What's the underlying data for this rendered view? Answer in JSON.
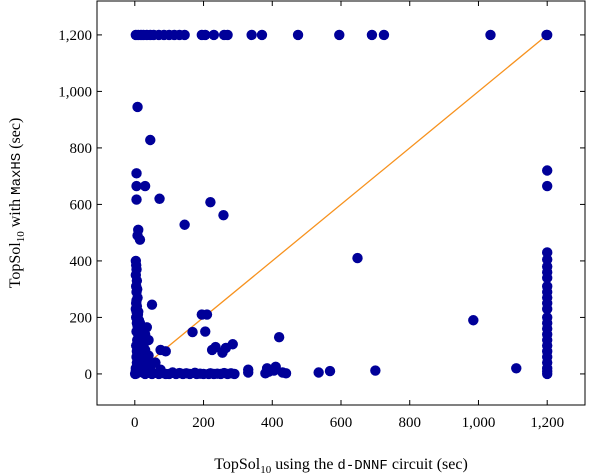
{
  "chart_data": {
    "type": "scatter",
    "xlabel": {
      "pre": "TopSol",
      "sub": "10",
      "mid": " using the ",
      "code": "d-DNNF",
      "post": " circuit (sec)"
    },
    "ylabel": {
      "pre": "TopSol",
      "sub": "10",
      "mid": " with ",
      "code": "MaxHS",
      "post": " (sec)"
    },
    "xlim": [
      -110,
      1310
    ],
    "ylim": [
      -110,
      1320
    ],
    "xticks": [
      0,
      200,
      400,
      600,
      800,
      1000,
      1200
    ],
    "xtick_labels": [
      "0",
      "200",
      "400",
      "600",
      "800",
      "1,000",
      "1,200"
    ],
    "yticks": [
      0,
      200,
      400,
      600,
      800,
      1000,
      1200
    ],
    "ytick_labels": [
      "0",
      "200",
      "400",
      "600",
      "800",
      "1,000",
      "1,200"
    ],
    "grid": false,
    "diagonal": {
      "from": [
        0,
        0
      ],
      "to": [
        1200,
        1200
      ],
      "color": "#f7921e"
    },
    "marker_color": "#000099",
    "points": [
      [
        3,
        1200
      ],
      [
        10,
        1200
      ],
      [
        18,
        1200
      ],
      [
        25,
        1200
      ],
      [
        35,
        1200
      ],
      [
        45,
        1200
      ],
      [
        55,
        1200
      ],
      [
        70,
        1200
      ],
      [
        85,
        1200
      ],
      [
        100,
        1200
      ],
      [
        115,
        1200
      ],
      [
        130,
        1200
      ],
      [
        145,
        1200
      ],
      [
        195,
        1200
      ],
      [
        205,
        1200
      ],
      [
        230,
        1200
      ],
      [
        260,
        1200
      ],
      [
        270,
        1200
      ],
      [
        340,
        1200
      ],
      [
        370,
        1200
      ],
      [
        475,
        1200
      ],
      [
        595,
        1200
      ],
      [
        690,
        1200
      ],
      [
        725,
        1200
      ],
      [
        1035,
        1200
      ],
      [
        1200,
        1200
      ],
      [
        1198,
        1200
      ],
      [
        8,
        945
      ],
      [
        45,
        828
      ],
      [
        5,
        710
      ],
      [
        5,
        665
      ],
      [
        30,
        665
      ],
      [
        72,
        620
      ],
      [
        5,
        617
      ],
      [
        220,
        608
      ],
      [
        258,
        562
      ],
      [
        145,
        528
      ],
      [
        10,
        510
      ],
      [
        8,
        490
      ],
      [
        15,
        475
      ],
      [
        1200,
        720
      ],
      [
        1200,
        665
      ],
      [
        1200,
        430
      ],
      [
        1200,
        405
      ],
      [
        1200,
        380
      ],
      [
        1200,
        360
      ],
      [
        1200,
        340
      ],
      [
        1200,
        310
      ],
      [
        1200,
        290
      ],
      [
        1200,
        270
      ],
      [
        1200,
        250
      ],
      [
        1200,
        230
      ],
      [
        1200,
        200
      ],
      [
        1200,
        180
      ],
      [
        1200,
        160
      ],
      [
        1200,
        140
      ],
      [
        1200,
        120
      ],
      [
        1200,
        100
      ],
      [
        1200,
        80
      ],
      [
        1200,
        60
      ],
      [
        1200,
        40
      ],
      [
        1200,
        20
      ],
      [
        1200,
        10
      ],
      [
        1200,
        0
      ],
      [
        648,
        410
      ],
      [
        985,
        190
      ],
      [
        1110,
        20
      ],
      [
        700,
        12
      ],
      [
        568,
        10
      ],
      [
        535,
        5
      ],
      [
        420,
        130
      ],
      [
        285,
        105
      ],
      [
        265,
        92
      ],
      [
        235,
        95
      ],
      [
        225,
        85
      ],
      [
        255,
        75
      ],
      [
        205,
        150
      ],
      [
        168,
        148
      ],
      [
        210,
        210
      ],
      [
        195,
        210
      ],
      [
        75,
        85
      ],
      [
        90,
        80
      ],
      [
        50,
        245
      ],
      [
        35,
        165
      ],
      [
        40,
        120
      ],
      [
        30,
        140
      ],
      [
        25,
        100
      ],
      [
        20,
        60
      ],
      [
        15,
        180
      ],
      [
        10,
        220
      ],
      [
        5,
        260
      ],
      [
        3,
        400
      ],
      [
        4,
        385
      ],
      [
        5,
        370
      ],
      [
        3,
        350
      ],
      [
        6,
        330
      ],
      [
        4,
        310
      ],
      [
        7,
        300
      ],
      [
        5,
        290
      ],
      [
        8,
        270
      ],
      [
        4,
        250
      ],
      [
        6,
        240
      ],
      [
        3,
        230
      ],
      [
        5,
        220
      ],
      [
        9,
        210
      ],
      [
        4,
        200
      ],
      [
        12,
        190
      ],
      [
        6,
        180
      ],
      [
        8,
        170
      ],
      [
        15,
        160
      ],
      [
        5,
        150
      ],
      [
        10,
        140
      ],
      [
        20,
        130
      ],
      [
        7,
        120
      ],
      [
        14,
        110
      ],
      [
        25,
        105
      ],
      [
        4,
        100
      ],
      [
        9,
        95
      ],
      [
        16,
        90
      ],
      [
        30,
        85
      ],
      [
        6,
        80
      ],
      [
        12,
        75
      ],
      [
        22,
        70
      ],
      [
        40,
        65
      ],
      [
        5,
        60
      ],
      [
        10,
        55
      ],
      [
        18,
        50
      ],
      [
        35,
        45
      ],
      [
        60,
        40
      ],
      [
        8,
        35
      ],
      [
        15,
        30
      ],
      [
        28,
        25
      ],
      [
        45,
        20
      ],
      [
        75,
        15
      ],
      [
        3,
        12
      ],
      [
        7,
        10
      ],
      [
        12,
        8
      ],
      [
        20,
        6
      ],
      [
        32,
        5
      ],
      [
        50,
        4
      ],
      [
        80,
        3
      ],
      [
        6,
        40
      ],
      [
        10,
        50
      ],
      [
        3,
        20
      ],
      [
        5,
        5
      ],
      [
        2,
        2
      ],
      [
        4,
        1
      ],
      [
        1,
        0
      ],
      [
        15,
        15
      ],
      [
        100,
        0
      ],
      [
        120,
        0
      ],
      [
        140,
        0
      ],
      [
        160,
        0
      ],
      [
        180,
        0
      ],
      [
        200,
        0
      ],
      [
        215,
        0
      ],
      [
        230,
        0
      ],
      [
        250,
        0
      ],
      [
        270,
        0
      ],
      [
        290,
        0
      ],
      [
        30,
        0
      ],
      [
        50,
        0
      ],
      [
        70,
        0
      ],
      [
        90,
        0
      ],
      [
        110,
        5
      ],
      [
        130,
        3
      ],
      [
        150,
        2
      ],
      [
        175,
        4
      ],
      [
        190,
        1
      ],
      [
        220,
        2
      ],
      [
        240,
        1
      ],
      [
        260,
        3
      ],
      [
        280,
        2
      ],
      [
        330,
        15
      ],
      [
        330,
        5
      ],
      [
        380,
        2
      ],
      [
        390,
        8
      ],
      [
        405,
        12
      ],
      [
        410,
        25
      ],
      [
        430,
        5
      ],
      [
        440,
        2
      ],
      [
        385,
        20
      ]
    ]
  }
}
